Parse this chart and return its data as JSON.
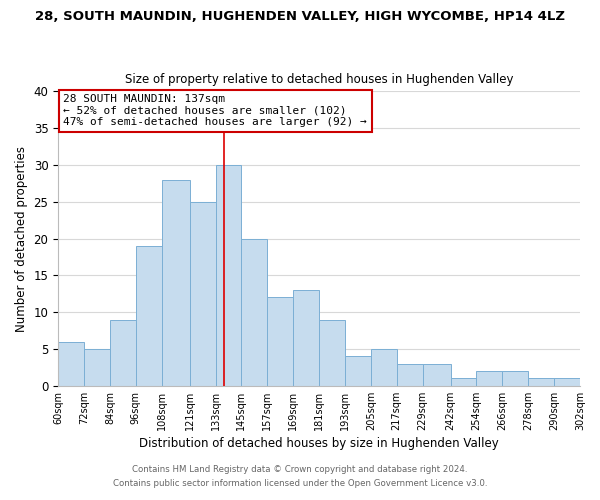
{
  "title1": "28, SOUTH MAUNDIN, HUGHENDEN VALLEY, HIGH WYCOMBE, HP14 4LZ",
  "title2": "Size of property relative to detached houses in Hughenden Valley",
  "xlabel": "Distribution of detached houses by size in Hughenden Valley",
  "ylabel": "Number of detached properties",
  "footer1": "Contains HM Land Registry data © Crown copyright and database right 2024.",
  "footer2": "Contains public sector information licensed under the Open Government Licence v3.0.",
  "bin_edges": [
    60,
    72,
    84,
    96,
    108,
    121,
    133,
    145,
    157,
    169,
    181,
    193,
    205,
    217,
    229,
    242,
    254,
    266,
    278,
    290,
    302
  ],
  "bin_labels": [
    "60sqm",
    "72sqm",
    "84sqm",
    "96sqm",
    "108sqm",
    "121sqm",
    "133sqm",
    "145sqm",
    "157sqm",
    "169sqm",
    "181sqm",
    "193sqm",
    "205sqm",
    "217sqm",
    "229sqm",
    "242sqm",
    "254sqm",
    "266sqm",
    "278sqm",
    "290sqm",
    "302sqm"
  ],
  "counts": [
    6,
    5,
    9,
    19,
    28,
    25,
    30,
    20,
    12,
    13,
    9,
    4,
    5,
    3,
    3,
    1,
    2,
    2,
    1,
    1
  ],
  "bar_color": "#c6dcee",
  "bar_edge_color": "#7bafd4",
  "vline_x": 137,
  "vline_color": "#dd0000",
  "ylim": [
    0,
    40
  ],
  "yticks": [
    0,
    5,
    10,
    15,
    20,
    25,
    30,
    35,
    40
  ],
  "annotation_title": "28 SOUTH MAUNDIN: 137sqm",
  "annotation_line1": "← 52% of detached houses are smaller (102)",
  "annotation_line2": "47% of semi-detached houses are larger (92) →",
  "annotation_box_color": "#ffffff",
  "annotation_box_edge": "#cc0000",
  "bg_color": "#ffffff",
  "grid_color": "#d8d8d8"
}
